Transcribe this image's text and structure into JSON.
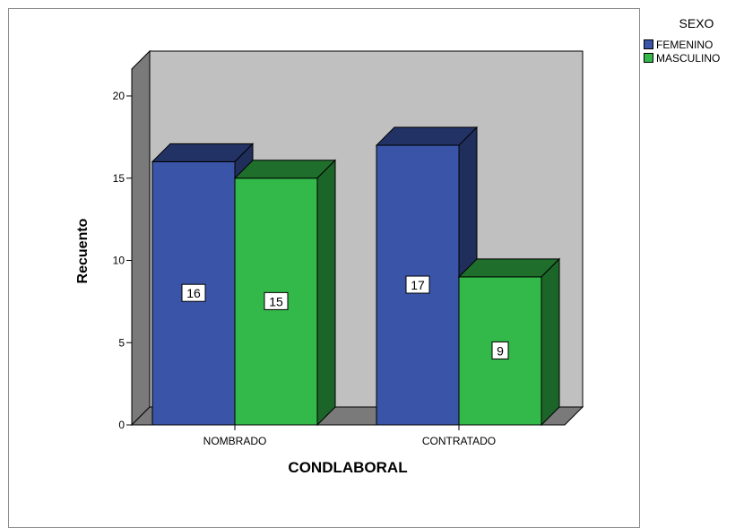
{
  "legend": {
    "title": "SEXO",
    "items": [
      {
        "label": "FEMENINO",
        "color": "#3a54a8"
      },
      {
        "label": "MASCULINO",
        "color": "#33b84a"
      }
    ]
  },
  "chart_data": {
    "type": "bar",
    "variant": "clustered-3d",
    "categories": [
      "NOMBRADO",
      "CONTRATADO"
    ],
    "series": [
      {
        "name": "FEMENINO",
        "values": [
          16,
          17
        ],
        "color": "#3a54a8"
      },
      {
        "name": "MASCULINO",
        "values": [
          15,
          9
        ],
        "color": "#33b84a"
      }
    ],
    "xlabel": "CONDLABORAL",
    "ylabel": "Recuento",
    "ylim": [
      0,
      20
    ],
    "yticks": [
      0,
      5,
      10,
      15,
      20
    ],
    "legend_title": "SEXO",
    "legend_position": "right",
    "data_labels": true,
    "grid": false
  }
}
